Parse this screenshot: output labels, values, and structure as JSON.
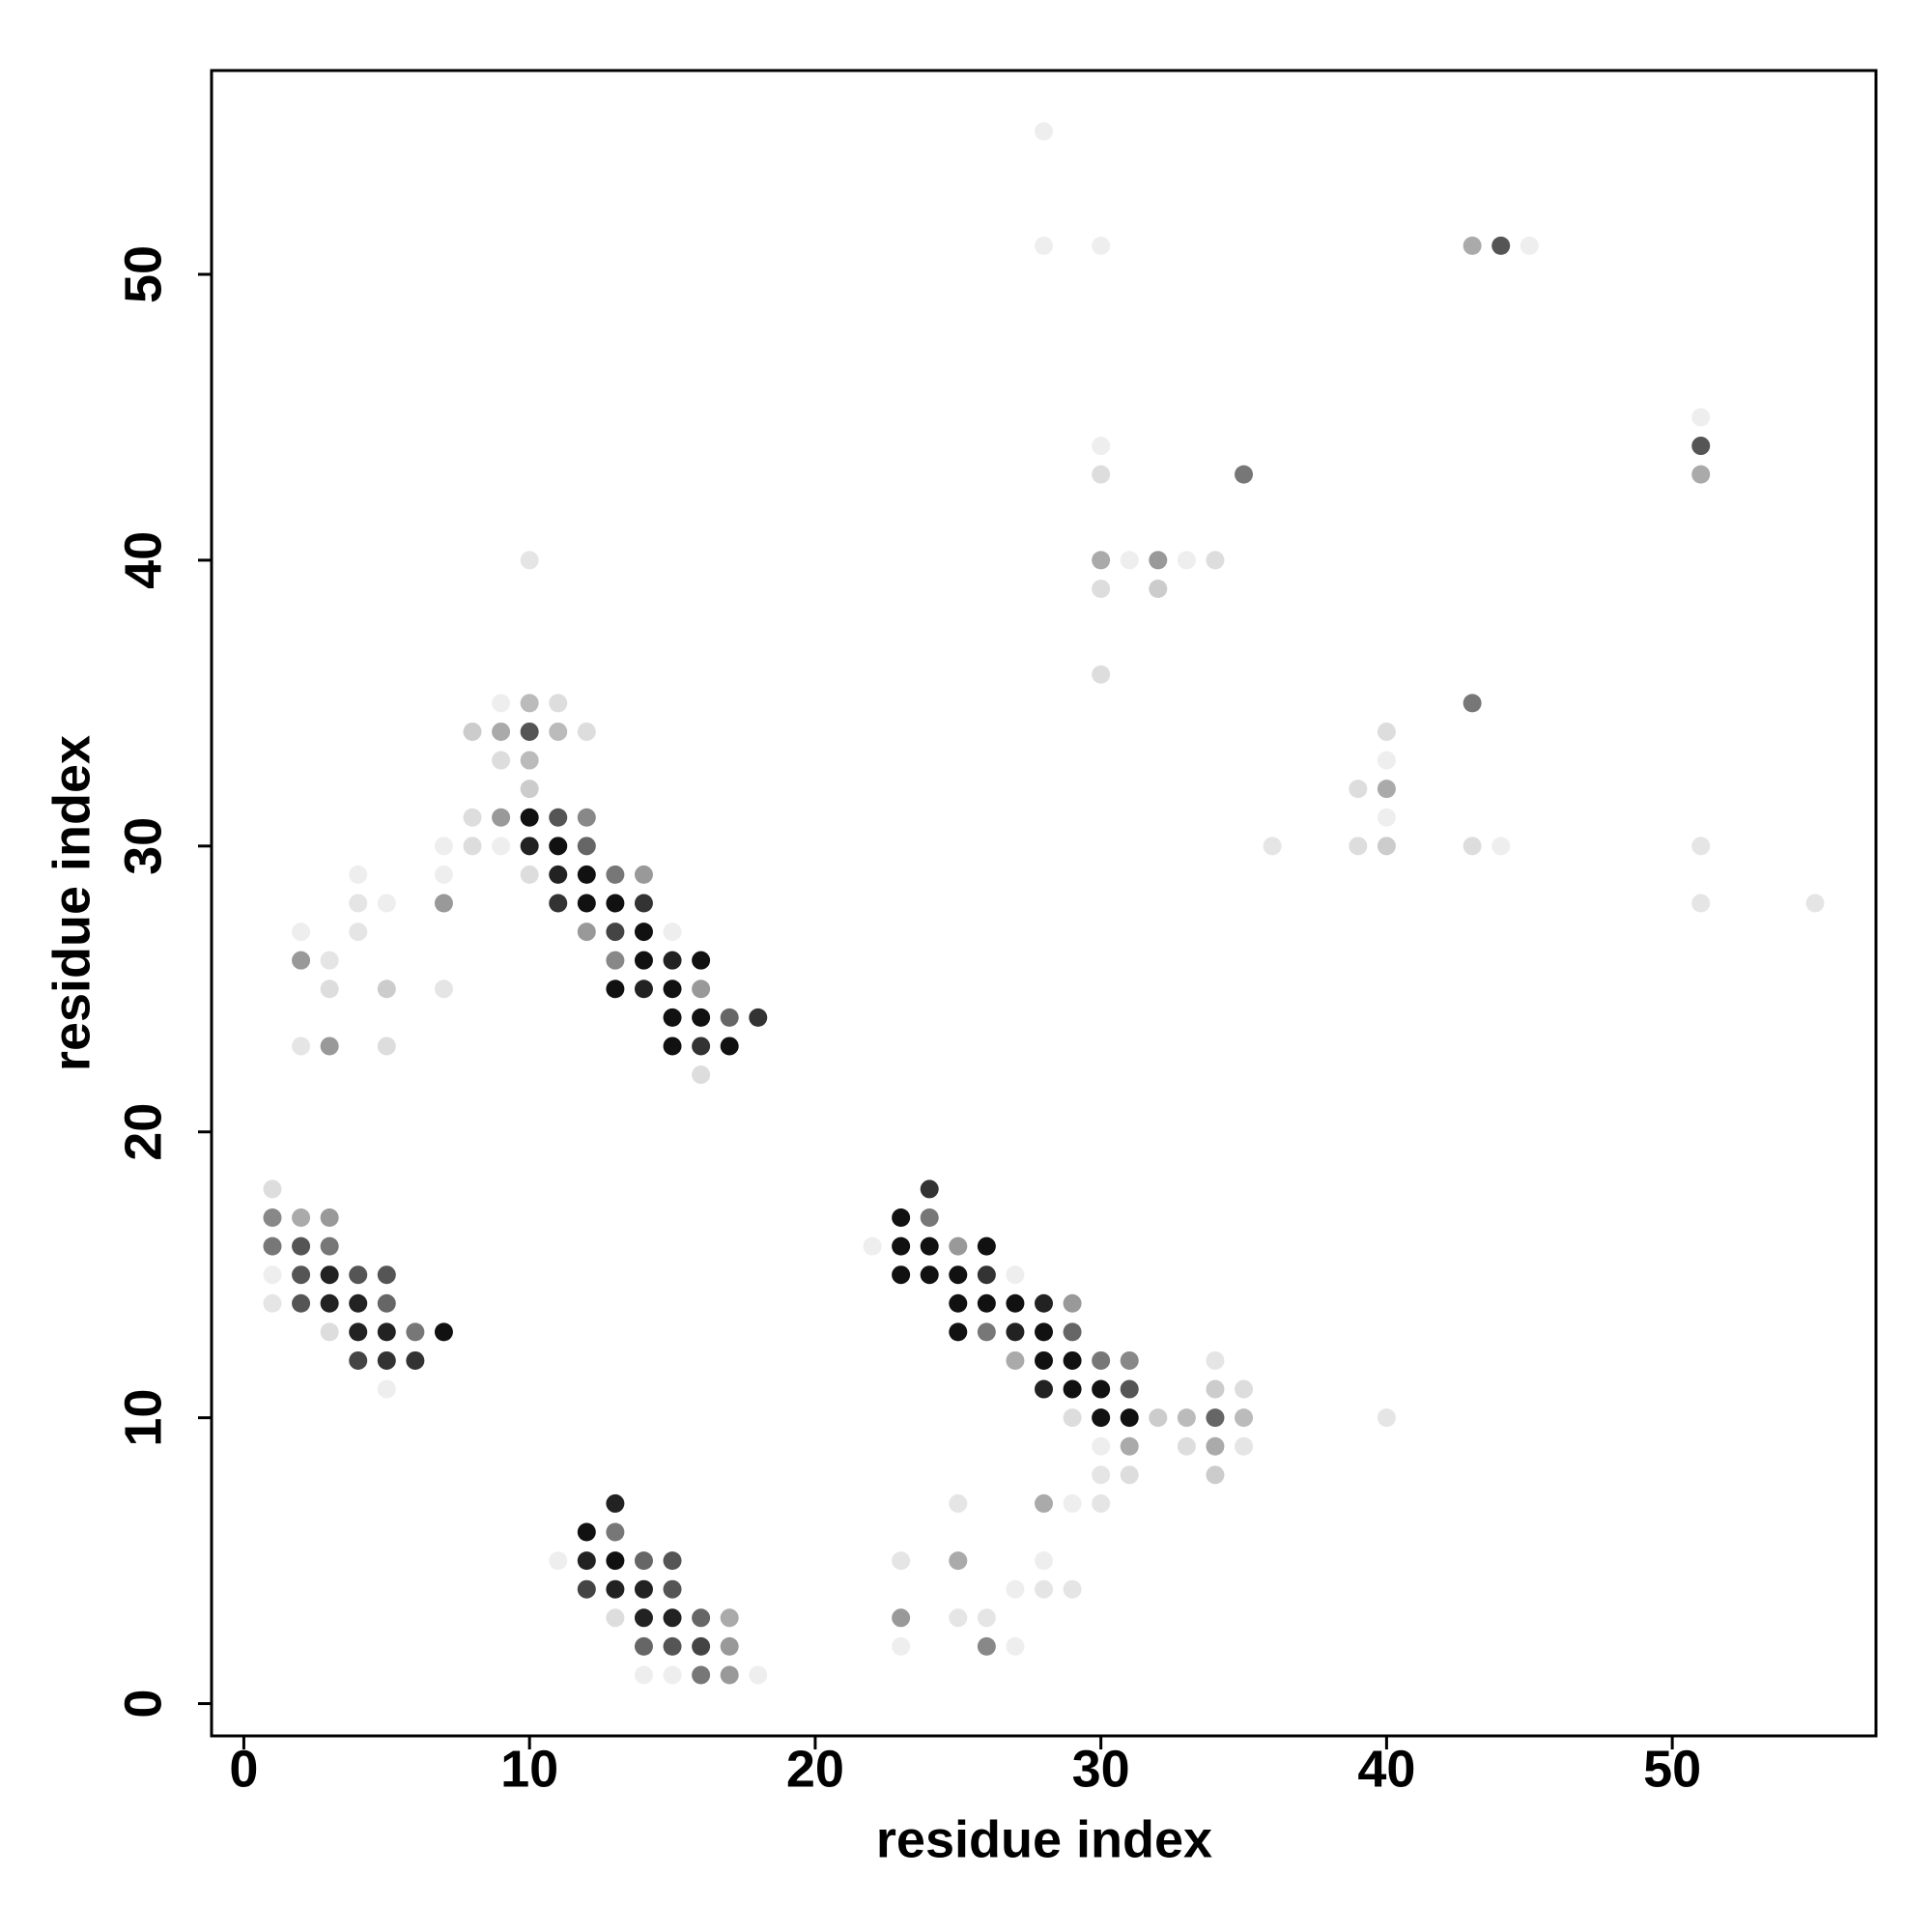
{
  "chart_data": {
    "type": "scatter",
    "xlabel": "residue index",
    "ylabel": "residue index",
    "xlim": [
      -1.13,
      57.13
    ],
    "ylim": [
      -1.13,
      57.13
    ],
    "xticks": [
      0,
      10,
      20,
      30,
      40,
      50
    ],
    "yticks": [
      0,
      10,
      20,
      30,
      40,
      50
    ],
    "grid": false,
    "x": [
      28,
      28,
      30,
      43,
      44,
      45,
      51,
      30,
      51,
      30,
      35,
      51,
      10,
      30,
      31,
      32,
      33,
      34,
      30,
      32,
      30,
      9,
      10,
      11,
      43,
      8,
      9,
      10,
      11,
      12,
      40,
      9,
      10,
      40,
      10,
      39,
      40,
      8,
      9,
      10,
      11,
      12,
      40,
      7,
      8,
      9,
      10,
      11,
      12,
      36,
      39,
      40,
      43,
      44,
      51,
      4,
      7,
      10,
      11,
      12,
      13,
      14,
      4,
      5,
      7,
      11,
      12,
      13,
      14,
      51,
      55,
      2,
      4,
      12,
      13,
      14,
      15,
      2,
      3,
      13,
      14,
      15,
      16,
      3,
      5,
      7,
      13,
      14,
      15,
      16,
      15,
      16,
      17,
      18,
      2,
      3,
      5,
      15,
      16,
      17,
      16,
      1,
      24,
      1,
      2,
      3,
      23,
      24,
      1,
      2,
      3,
      22,
      23,
      24,
      25,
      26,
      1,
      2,
      3,
      4,
      5,
      23,
      24,
      25,
      26,
      27,
      1,
      2,
      3,
      4,
      5,
      25,
      26,
      27,
      28,
      29,
      3,
      4,
      5,
      6,
      7,
      25,
      26,
      27,
      28,
      29,
      4,
      5,
      6,
      27,
      28,
      29,
      30,
      31,
      34,
      5,
      28,
      29,
      30,
      31,
      34,
      35,
      29,
      30,
      31,
      32,
      33,
      34,
      35,
      40,
      30,
      31,
      33,
      34,
      35,
      30,
      31,
      34,
      13,
      25,
      28,
      29,
      30,
      12,
      13,
      11,
      12,
      13,
      14,
      15,
      23,
      25,
      28,
      12,
      13,
      14,
      15,
      27,
      28,
      29,
      13,
      14,
      15,
      16,
      17,
      23,
      25,
      26,
      14,
      15,
      16,
      17,
      23,
      26,
      27,
      14,
      15,
      16,
      17,
      18
    ],
    "values": [
      55,
      51,
      51,
      51,
      51,
      51,
      45,
      44,
      44,
      43,
      43,
      43,
      40,
      40,
      40,
      40,
      40,
      40,
      39,
      39,
      36,
      35,
      35,
      35,
      35,
      34,
      34,
      34,
      34,
      34,
      34,
      33,
      33,
      33,
      32,
      32,
      32,
      31,
      31,
      31,
      31,
      31,
      31,
      30,
      30,
      30,
      30,
      30,
      30,
      30,
      30,
      30,
      30,
      30,
      30,
      29,
      29,
      29,
      29,
      29,
      29,
      29,
      28,
      28,
      28,
      28,
      28,
      28,
      28,
      28,
      28,
      27,
      27,
      27,
      27,
      27,
      27,
      26,
      26,
      26,
      26,
      26,
      26,
      25,
      25,
      25,
      25,
      25,
      25,
      25,
      24,
      24,
      24,
      24,
      23,
      23,
      23,
      23,
      23,
      23,
      22,
      18,
      18,
      17,
      17,
      17,
      17,
      17,
      16,
      16,
      16,
      16,
      16,
      16,
      16,
      16,
      15,
      15,
      15,
      15,
      15,
      15,
      15,
      15,
      15,
      15,
      14,
      14,
      14,
      14,
      14,
      14,
      14,
      14,
      14,
      14,
      13,
      13,
      13,
      13,
      13,
      13,
      13,
      13,
      13,
      13,
      12,
      12,
      12,
      12,
      12,
      12,
      12,
      12,
      12,
      11,
      11,
      11,
      11,
      11,
      11,
      11,
      10,
      10,
      10,
      10,
      10,
      10,
      10,
      10,
      9,
      9,
      9,
      9,
      9,
      8,
      8,
      8,
      7,
      7,
      7,
      7,
      7,
      6,
      6,
      5,
      5,
      5,
      5,
      5,
      5,
      5,
      5,
      4,
      4,
      4,
      4,
      4,
      4,
      4,
      3,
      3,
      3,
      3,
      3,
      3,
      3,
      3,
      2,
      2,
      2,
      2,
      2,
      2,
      2,
      1,
      1,
      1,
      1,
      1
    ],
    "colors": [
      "#eee",
      "#eee",
      "#eee",
      "#aaa",
      "#555",
      "#eee",
      "#eee",
      "#eee",
      "#555",
      "#ddd",
      "#777",
      "#aaa",
      "#e5e5e5",
      "#aaa",
      "#eee",
      "#999",
      "#eee",
      "#ddd",
      "#ddd",
      "#ccc",
      "#ddd",
      "#eee",
      "#bbb",
      "#ddd",
      "#777",
      "#ccc",
      "#aaa",
      "#555",
      "#bbb",
      "#ddd",
      "#ddd",
      "#ddd",
      "#bbb",
      "#eee",
      "#ccc",
      "#ddd",
      "#aaa",
      "#ddd",
      "#999",
      "#111",
      "#555",
      "#888",
      "#eee",
      "#eee",
      "#ddd",
      "#eee",
      "#222",
      "#111",
      "#666",
      "#e5e5e5",
      "#ddd",
      "#ccc",
      "#ddd",
      "#eee",
      "#e5e5e5",
      "#eee",
      "#eee",
      "#ddd",
      "#222",
      "#111",
      "#777",
      "#999",
      "#e5e5e5",
      "#eee",
      "#999",
      "#333",
      "#111",
      "#111",
      "#333",
      "#e5e5e5",
      "#e5e5e5",
      "#eee",
      "#e5e5e5",
      "#999",
      "#444",
      "#111",
      "#eee",
      "#999",
      "#e5e5e5",
      "#888",
      "#111",
      "#222",
      "#111",
      "#ddd",
      "#ccc",
      "#e5e5e5",
      "#111",
      "#222",
      "#111",
      "#999",
      "#111",
      "#111",
      "#666",
      "#333",
      "#e5e5e5",
      "#999",
      "#ddd",
      "#111",
      "#333",
      "#111",
      "#ddd",
      "#ddd",
      "#333",
      "#888",
      "#aaa",
      "#999",
      "#111",
      "#777",
      "#777",
      "#555",
      "#777",
      "#eee",
      "#111",
      "#111",
      "#999",
      "#111",
      "#eee",
      "#555",
      "#222",
      "#555",
      "#555",
      "#111",
      "#111",
      "#111",
      "#333",
      "#eee",
      "#e5e5e5",
      "#555",
      "#222",
      "#222",
      "#666",
      "#111",
      "#111",
      "#111",
      "#222",
      "#999",
      "#ddd",
      "#222",
      "#222",
      "#777",
      "#111",
      "#111",
      "#777",
      "#222",
      "#111",
      "#666",
      "#444",
      "#333",
      "#333",
      "#aaa",
      "#111",
      "#111",
      "#777",
      "#888",
      "#e5e5e5",
      "#eee",
      "#222",
      "#111",
      "#111",
      "#555",
      "#ccc",
      "#ddd",
      "#ddd",
      "#111",
      "#111",
      "#ccc",
      "#bbb",
      "#666",
      "#bbb",
      "#e5e5e5",
      "#eee",
      "#aaa",
      "#ddd",
      "#aaa",
      "#e5e5e5",
      "#e5e5e5",
      "#ddd",
      "#ccc",
      "#222",
      "#e5e5e5",
      "#aaa",
      "#eee",
      "#e5e5e5",
      "#111",
      "#777",
      "#eee",
      "#222",
      "#111",
      "#666",
      "#555",
      "#e5e5e5",
      "#aaa",
      "#eee",
      "#444",
      "#222",
      "#222",
      "#555",
      "#eee",
      "#e5e5e5",
      "#e5e5e5",
      "#ddd",
      "#222",
      "#222",
      "#666",
      "#aaa",
      "#999",
      "#e5e5e5",
      "#e5e5e5",
      "#666",
      "#555",
      "#444",
      "#999",
      "#eee",
      "#888",
      "#eee",
      "#eee",
      "#eee",
      "#777",
      "#999",
      "#eee"
    ]
  }
}
